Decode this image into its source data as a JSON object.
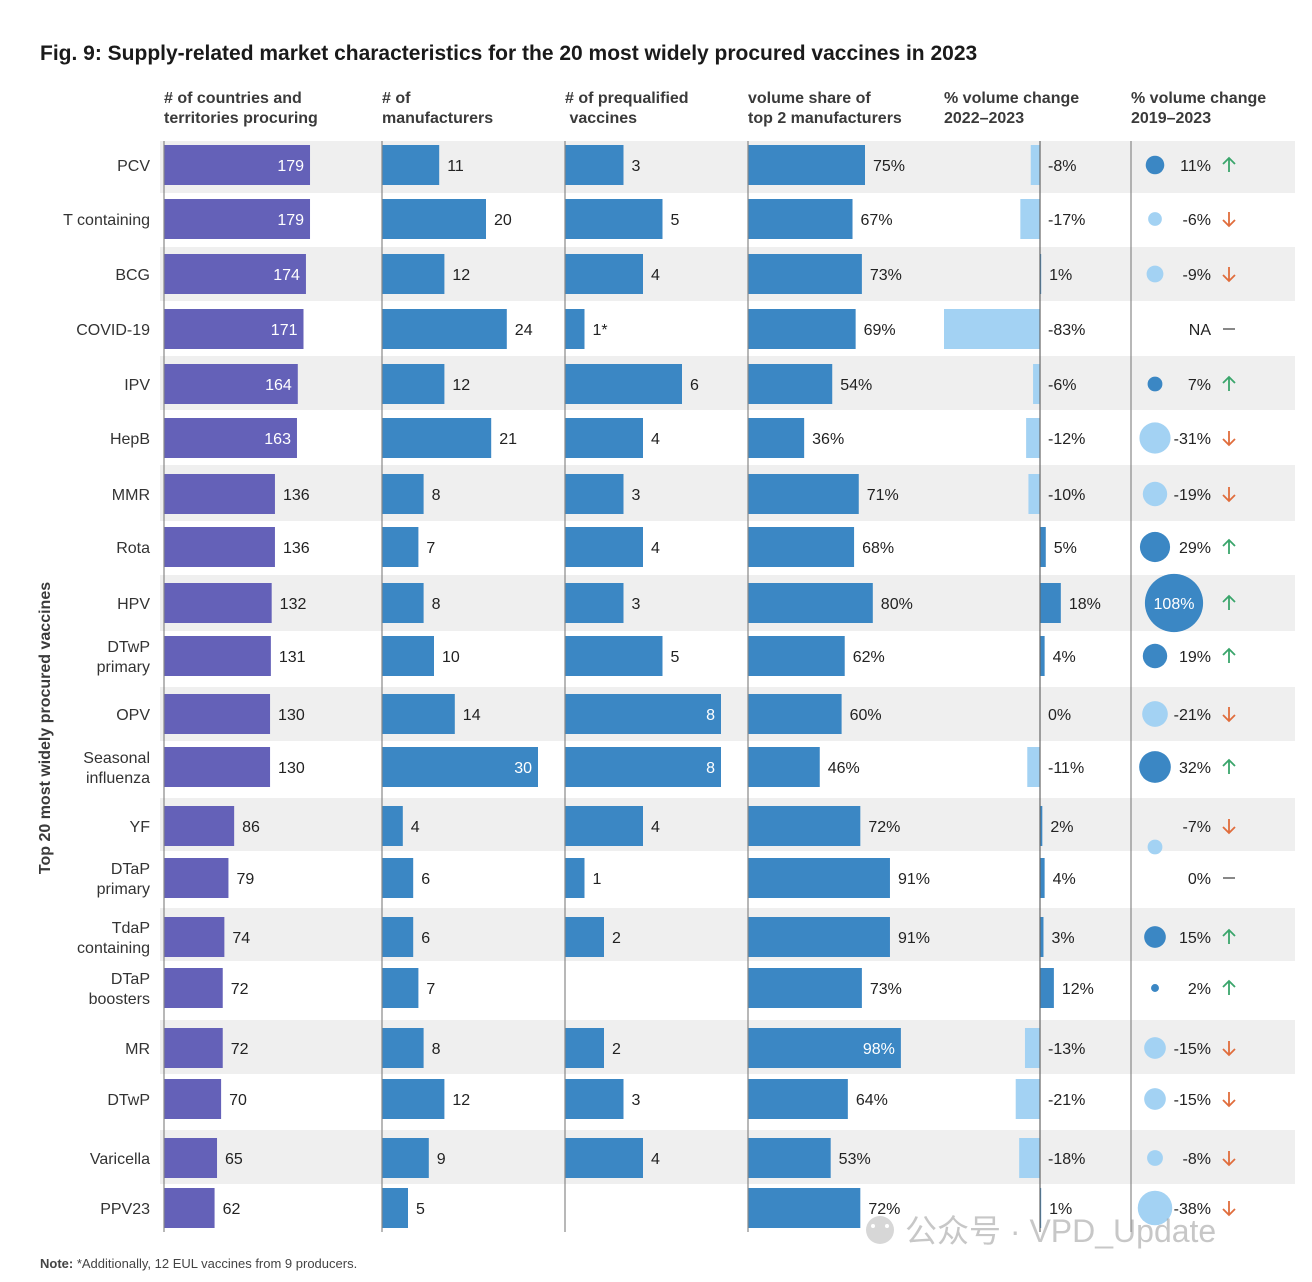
{
  "chart_data": {
    "type": "table",
    "title": "Fig. 9: Supply-related market characteristics for the 20 most widely procured vaccines in 2023",
    "ylabel": "Top 20 most widely procured vaccines",
    "columns": [
      {
        "key": "countries",
        "label": [
          "# of countries and",
          "territories procuring"
        ],
        "max": 190
      },
      {
        "key": "manufacturers",
        "label": [
          "# of",
          "manufacturers"
        ],
        "max": 30
      },
      {
        "key": "prequalified",
        "label": [
          "# of prequalified",
          " vaccines"
        ],
        "max": 8
      },
      {
        "key": "share",
        "label": [
          "volume share of",
          "top 2 manufacturers"
        ],
        "max": 100
      },
      {
        "key": "change_22_23",
        "label": [
          "% volume change",
          "2022–2023"
        ],
        "max": 83
      },
      {
        "key": "change_19_23",
        "label": [
          "% volume change",
          "2019–2023"
        ]
      }
    ],
    "rows": [
      {
        "name": [
          "PCV"
        ],
        "countries": 179,
        "manufacturers": 11,
        "prequalified": 3,
        "prequalified_label": "3",
        "share": 75,
        "change_22_23": -8,
        "change_19_23": 11,
        "trend": "up"
      },
      {
        "name": [
          "T containing"
        ],
        "countries": 179,
        "manufacturers": 20,
        "prequalified": 5,
        "prequalified_label": "5",
        "share": 67,
        "change_22_23": -17,
        "change_19_23": -6,
        "trend": "down"
      },
      {
        "name": [
          "BCG"
        ],
        "countries": 174,
        "manufacturers": 12,
        "prequalified": 4,
        "prequalified_label": "4",
        "share": 73,
        "change_22_23": 1,
        "change_19_23": -9,
        "trend": "down"
      },
      {
        "name": [
          "COVID-19"
        ],
        "countries": 171,
        "manufacturers": 24,
        "prequalified": 1,
        "prequalified_label": "1*",
        "share": 69,
        "change_22_23": -83,
        "change_19_23": null,
        "change_19_23_label": "NA",
        "trend": "flat"
      },
      {
        "name": [
          "IPV"
        ],
        "countries": 164,
        "manufacturers": 12,
        "prequalified": 6,
        "prequalified_label": "6",
        "share": 54,
        "change_22_23": -6,
        "change_19_23": 7,
        "trend": "up"
      },
      {
        "name": [
          "HepB"
        ],
        "countries": 163,
        "manufacturers": 21,
        "prequalified": 4,
        "prequalified_label": "4",
        "share": 36,
        "change_22_23": -12,
        "change_19_23": -31,
        "trend": "down"
      },
      {
        "name": [
          "MMR"
        ],
        "countries": 136,
        "manufacturers": 8,
        "prequalified": 3,
        "prequalified_label": "3",
        "share": 71,
        "change_22_23": -10,
        "change_19_23": -19,
        "trend": "down"
      },
      {
        "name": [
          "Rota"
        ],
        "countries": 136,
        "manufacturers": 7,
        "prequalified": 4,
        "prequalified_label": "4",
        "share": 68,
        "change_22_23": 5,
        "change_19_23": 29,
        "trend": "up"
      },
      {
        "name": [
          "HPV"
        ],
        "countries": 132,
        "manufacturers": 8,
        "prequalified": 3,
        "prequalified_label": "3",
        "share": 80,
        "change_22_23": 18,
        "change_19_23": 108,
        "trend": "up"
      },
      {
        "name": [
          "DTwP",
          "primary"
        ],
        "countries": 131,
        "manufacturers": 10,
        "prequalified": 5,
        "prequalified_label": "5",
        "share": 62,
        "change_22_23": 4,
        "change_19_23": 19,
        "trend": "up"
      },
      {
        "name": [
          "OPV"
        ],
        "countries": 130,
        "manufacturers": 14,
        "prequalified": 8,
        "prequalified_label": "8",
        "share": 60,
        "change_22_23": 0,
        "change_19_23": -21,
        "trend": "down"
      },
      {
        "name": [
          "Seasonal",
          "influenza"
        ],
        "countries": 130,
        "manufacturers": 30,
        "prequalified": 8,
        "prequalified_label": "8",
        "share": 46,
        "change_22_23": -11,
        "change_19_23": 32,
        "trend": "up"
      },
      {
        "name": [
          "YF"
        ],
        "countries": 86,
        "manufacturers": 4,
        "prequalified": 4,
        "prequalified_label": "4",
        "share": 72,
        "change_22_23": 2,
        "change_19_23": -7,
        "trend": "down"
      },
      {
        "name": [
          "DTaP",
          "primary"
        ],
        "countries": 79,
        "manufacturers": 6,
        "prequalified": 1,
        "prequalified_label": "1",
        "share": 91,
        "change_22_23": 4,
        "change_19_23": 0,
        "trend": "flat"
      },
      {
        "name": [
          "TdaP",
          "containing"
        ],
        "countries": 74,
        "manufacturers": 6,
        "prequalified": 2,
        "prequalified_label": "2",
        "share": 91,
        "change_22_23": 3,
        "change_19_23": 15,
        "trend": "up"
      },
      {
        "name": [
          "DTaP",
          "boosters"
        ],
        "countries": 72,
        "manufacturers": 7,
        "prequalified": null,
        "prequalified_label": "",
        "share": 73,
        "change_22_23": 12,
        "change_19_23": 2,
        "trend": "up"
      },
      {
        "name": [
          "MR"
        ],
        "countries": 72,
        "manufacturers": 8,
        "prequalified": 2,
        "prequalified_label": "2",
        "share": 98,
        "change_22_23": -13,
        "change_19_23": -15,
        "trend": "down"
      },
      {
        "name": [
          "DTwP"
        ],
        "countries": 70,
        "manufacturers": 12,
        "prequalified": 3,
        "prequalified_label": "3",
        "share": 64,
        "change_22_23": -21,
        "change_19_23": -15,
        "trend": "down"
      },
      {
        "name": [
          "Varicella"
        ],
        "countries": 65,
        "manufacturers": 9,
        "prequalified": 4,
        "prequalified_label": "4",
        "share": 53,
        "change_22_23": -18,
        "change_19_23": -8,
        "trend": "down"
      },
      {
        "name": [
          "PPV23"
        ],
        "countries": 62,
        "manufacturers": 5,
        "prequalified": null,
        "prequalified_label": "",
        "share": 72,
        "change_22_23": 1,
        "change_19_23": -38,
        "trend": "down"
      }
    ],
    "note": {
      "bold": "Note:",
      "text": " *Additionally, 12 EUL vaccines from 9 producers."
    },
    "watermark": "公众号 · VPD_Update"
  },
  "colors": {
    "purple": "#6461b8",
    "blue": "#3b87c4",
    "light_blue": "#a3d2f3",
    "up": "#3aa56b",
    "down": "#e06d3c",
    "row_band": "#efefef",
    "flat": "#555555"
  }
}
